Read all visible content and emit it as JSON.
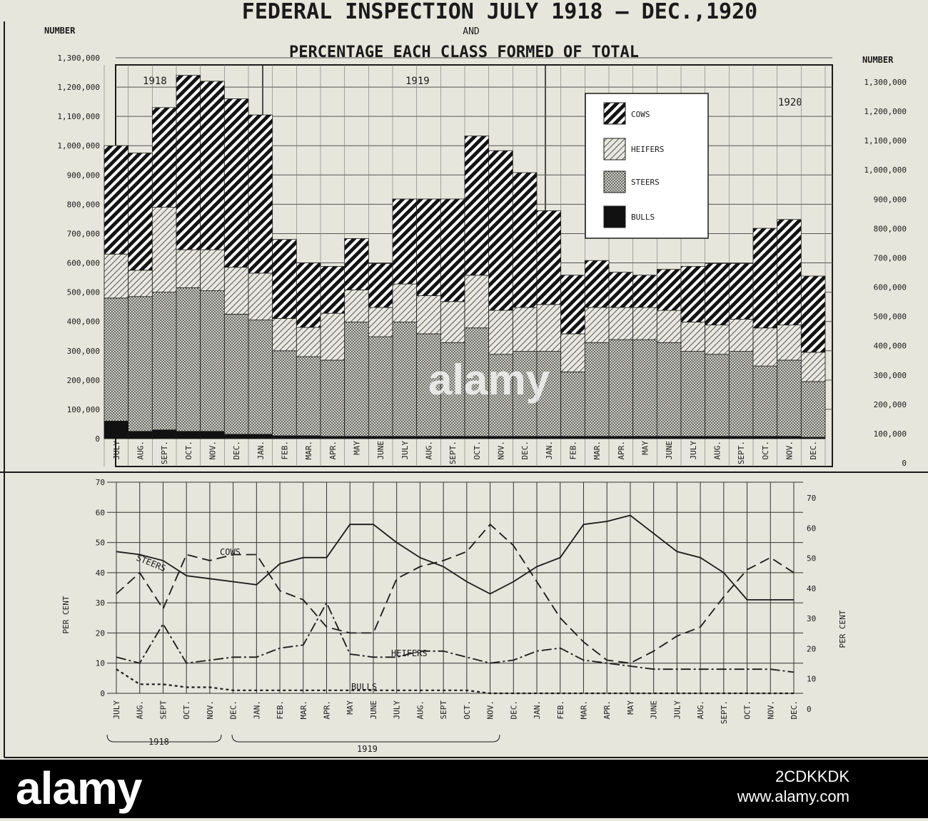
{
  "title_line1": "FEDERAL INSPECTION JULY 1918 – DEC.,1920",
  "title_and": "AND",
  "title_line2": "PERCENTAGE EACH CLASS FORMED OF TOTAL",
  "left_axis_title": "NUMBER",
  "right_axis_title": "NUMBER",
  "pct_axis_title": "PER CENT",
  "year_labels": [
    "1918",
    "1919",
    "1920"
  ],
  "legend": [
    {
      "key": "cows",
      "label": "COWS"
    },
    {
      "key": "heifers",
      "label": "HEIFERS"
    },
    {
      "key": "steers",
      "label": "STEERS"
    },
    {
      "key": "bulls",
      "label": "BULLS"
    }
  ],
  "line_labels": {
    "cows": "COWS",
    "steers": "STEERS",
    "heifers": "HEIFERS",
    "bulls": "BULLS"
  },
  "bottom_year_labels": [
    "1918",
    "1919"
  ],
  "colors": {
    "bg": "#e6e6dc",
    "ink": "#1a1a1a",
    "bulls": "#111111",
    "steers_base": "#c8c8c0",
    "heifers_base": "#dcdcd2"
  },
  "watermark": {
    "logo": "alamy",
    "id": "2CDKKDK",
    "url": "www.alamy.com",
    "center": "alamy"
  },
  "chart_data": [
    {
      "type": "bar",
      "stacked": true,
      "categories": [
        "JULY",
        "AUG.",
        "SEPT.",
        "OCT.",
        "NOV.",
        "DEC.",
        "JAN.",
        "FEB.",
        "MAR.",
        "APR.",
        "MAY",
        "JUNE",
        "JULY",
        "AUG.",
        "SEPT.",
        "OCT.",
        "NOV.",
        "DEC.",
        "JAN.",
        "FEB.",
        "MAR.",
        "APR.",
        "MAY",
        "JUNE",
        "JULY",
        "AUG.",
        "SEPT.",
        "OCT.",
        "NOV.",
        "DEC."
      ],
      "ylim": [
        0,
        1300000
      ],
      "yticks": [
        0,
        100000,
        200000,
        300000,
        400000,
        500000,
        600000,
        700000,
        800000,
        900000,
        1000000,
        1100000,
        1200000,
        1300000
      ],
      "ytick_labels_left": [
        "0",
        "100,000",
        "200,000",
        "300,000",
        "400,000",
        "500,000",
        "600,000",
        "700,000",
        "800,000",
        "900,000",
        "1,000,000",
        "1,100,000",
        "1,200,000",
        "1,300,000"
      ],
      "ytick_labels_right": [
        "0",
        "100,000",
        "200,000",
        "300,000",
        "400,000",
        "500,000",
        "600,000",
        "700,000",
        "800,000",
        "900,000",
        "1,000,000",
        "1,100,000",
        "1,200,000",
        "1,300,000"
      ],
      "series": [
        {
          "name": "BULLS",
          "values": [
            60000,
            25000,
            30000,
            25000,
            25000,
            15000,
            15000,
            10000,
            10000,
            8000,
            8000,
            8000,
            8000,
            8000,
            8000,
            8000,
            8000,
            8000,
            8000,
            8000,
            8000,
            8000,
            8000,
            8000,
            8000,
            8000,
            8000,
            8000,
            8000,
            5000
          ]
        },
        {
          "name": "STEERS",
          "values": [
            420000,
            460000,
            470000,
            490000,
            480000,
            410000,
            390000,
            290000,
            270000,
            260000,
            390000,
            340000,
            390000,
            350000,
            320000,
            370000,
            280000,
            290000,
            290000,
            220000,
            320000,
            330000,
            330000,
            320000,
            290000,
            280000,
            290000,
            240000,
            260000,
            190000
          ]
        },
        {
          "name": "HEIFERS",
          "values": [
            150000,
            90000,
            290000,
            130000,
            140000,
            160000,
            160000,
            110000,
            100000,
            160000,
            110000,
            100000,
            130000,
            130000,
            140000,
            180000,
            150000,
            150000,
            160000,
            130000,
            120000,
            110000,
            110000,
            110000,
            100000,
            100000,
            110000,
            130000,
            120000,
            100000
          ]
        },
        {
          "name": "COWS",
          "values": [
            370000,
            400000,
            340000,
            595000,
            575000,
            575000,
            540000,
            270000,
            220000,
            160000,
            175000,
            150000,
            290000,
            330000,
            350000,
            475000,
            545000,
            460000,
            320000,
            200000,
            160000,
            120000,
            110000,
            140000,
            190000,
            210000,
            190000,
            340000,
            360000,
            260000
          ]
        }
      ]
    },
    {
      "type": "line",
      "x": [
        "JULY",
        "AUG.",
        "SEPT",
        "OCT.",
        "NOV.",
        "DEC.",
        "JAN.",
        "FEB.",
        "MAR.",
        "APR.",
        "MAY",
        "JUNE",
        "JULY",
        "AUG.",
        "SEPT",
        "OCT.",
        "NOV.",
        "DEC.",
        "JAN.",
        "FEB.",
        "MAR.",
        "APR.",
        "MAY",
        "JUNE",
        "JULY",
        "AUG.",
        "SEPT.",
        "OCT.",
        "NOV.",
        "DEC."
      ],
      "ylim": [
        0,
        70
      ],
      "yticks": [
        0,
        10,
        20,
        30,
        40,
        50,
        60,
        70
      ],
      "series": [
        {
          "name": "COWS",
          "values": [
            33,
            40,
            28,
            46,
            44,
            46,
            46,
            34,
            31,
            22,
            20,
            20,
            38,
            42,
            44,
            47,
            56,
            49,
            37,
            25,
            17,
            11,
            10,
            14,
            19,
            22,
            32,
            41,
            45,
            40
          ]
        },
        {
          "name": "STEERS",
          "values": [
            47,
            46,
            44,
            39,
            38,
            37,
            36,
            43,
            45,
            45,
            56,
            56,
            50,
            45,
            42,
            37,
            33,
            37,
            42,
            45,
            56,
            57,
            59,
            53,
            47,
            45,
            40,
            31,
            31,
            31
          ]
        },
        {
          "name": "HEIFERS",
          "values": [
            12,
            10,
            23,
            10,
            11,
            12,
            12,
            15,
            16,
            30,
            13,
            12,
            12,
            14,
            14,
            12,
            10,
            11,
            14,
            15,
            11,
            10,
            9,
            8,
            8,
            8,
            8,
            8,
            8,
            7
          ]
        },
        {
          "name": "BULLS",
          "values": [
            8,
            3,
            3,
            2,
            2,
            1,
            1,
            1,
            1,
            1,
            1,
            1,
            1,
            1,
            1,
            1,
            0,
            0,
            0,
            0,
            0,
            0,
            0,
            0,
            0,
            0,
            0,
            0,
            0,
            0
          ]
        }
      ]
    }
  ]
}
